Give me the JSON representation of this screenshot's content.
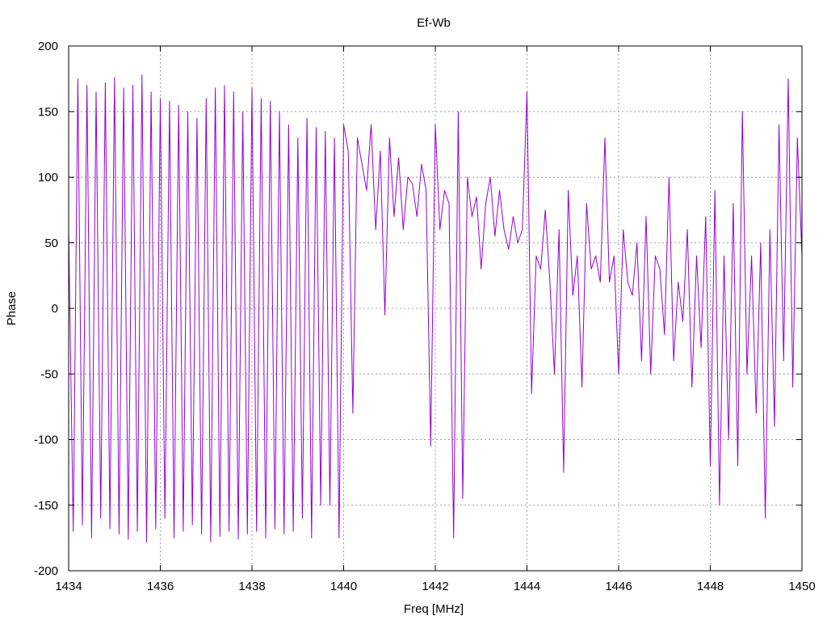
{
  "chart_data": {
    "type": "line",
    "title": "Ef-Wb",
    "xlabel": "Freq [MHz]",
    "ylabel": "Phase",
    "xlim": [
      1434,
      1450
    ],
    "ylim": [
      -200,
      200
    ],
    "xticks": [
      1434,
      1436,
      1438,
      1440,
      1442,
      1444,
      1446,
      1448,
      1450
    ],
    "yticks": [
      -200,
      -150,
      -100,
      -50,
      0,
      50,
      100,
      150,
      200
    ],
    "grid": true,
    "legend": "none",
    "series_color": "#9400d3",
    "series": [
      {
        "x": [
          1434.0,
          1434.1,
          1434.2,
          1434.3,
          1434.4,
          1434.5,
          1434.6,
          1434.7,
          1434.8,
          1434.9,
          1435.0,
          1435.1,
          1435.2,
          1435.3,
          1435.4,
          1435.5,
          1435.6,
          1435.7,
          1435.8,
          1435.9,
          1436.0,
          1436.1,
          1436.2,
          1436.3,
          1436.4,
          1436.5,
          1436.6,
          1436.7,
          1436.8,
          1436.9,
          1437.0,
          1437.1,
          1437.2,
          1437.3,
          1437.4,
          1437.5,
          1437.6,
          1437.7,
          1437.8,
          1437.9,
          1438.0,
          1438.1,
          1438.2,
          1438.3,
          1438.4,
          1438.5,
          1438.6,
          1438.7,
          1438.8,
          1438.9,
          1439.0,
          1439.1,
          1439.2,
          1439.3,
          1439.4,
          1439.5,
          1439.6,
          1439.7,
          1439.8,
          1439.9,
          1440.0,
          1440.1,
          1440.2,
          1440.3,
          1440.4,
          1440.5,
          1440.6,
          1440.7,
          1440.8,
          1440.9,
          1441.0,
          1441.1,
          1441.2,
          1441.3,
          1441.4,
          1441.5,
          1441.6,
          1441.7,
          1441.8,
          1441.9,
          1442.0,
          1442.1,
          1442.2,
          1442.3,
          1442.4,
          1442.5,
          1442.6,
          1442.7,
          1442.8,
          1442.9,
          1443.0,
          1443.1,
          1443.2,
          1443.3,
          1443.4,
          1443.5,
          1443.6,
          1443.7,
          1443.8,
          1443.9,
          1444.0,
          1444.1,
          1444.2,
          1444.3,
          1444.4,
          1444.5,
          1444.6,
          1444.7,
          1444.8,
          1444.9,
          1445.0,
          1445.1,
          1445.2,
          1445.3,
          1445.4,
          1445.5,
          1445.6,
          1445.7,
          1445.8,
          1445.9,
          1446.0,
          1446.1,
          1446.2,
          1446.3,
          1446.4,
          1446.5,
          1446.6,
          1446.7,
          1446.8,
          1446.9,
          1447.0,
          1447.1,
          1447.2,
          1447.3,
          1447.4,
          1447.5,
          1447.6,
          1447.7,
          1447.8,
          1447.9,
          1448.0,
          1448.1,
          1448.2,
          1448.3,
          1448.4,
          1448.5,
          1448.6,
          1448.7,
          1448.8,
          1448.9,
          1449.0,
          1449.1,
          1449.2,
          1449.3,
          1449.4,
          1449.5,
          1449.6,
          1449.7,
          1449.8,
          1449.9,
          1450.0
        ],
        "y": [
          60,
          -170,
          175,
          -165,
          170,
          -175,
          165,
          -160,
          172,
          -168,
          176,
          -172,
          168,
          -176,
          170,
          -170,
          178,
          -178,
          165,
          -168,
          160,
          -160,
          158,
          -175,
          155,
          -170,
          150,
          -165,
          145,
          -172,
          160,
          -178,
          168,
          -174,
          170,
          -170,
          165,
          -176,
          150,
          -172,
          168,
          -170,
          160,
          -175,
          158,
          -168,
          150,
          -172,
          140,
          -170,
          130,
          -160,
          145,
          -175,
          138,
          -150,
          135,
          -150,
          130,
          -175,
          140,
          120,
          -80,
          130,
          110,
          90,
          140,
          60,
          120,
          -5,
          130,
          70,
          115,
          60,
          100,
          95,
          70,
          110,
          90,
          -105,
          140,
          60,
          90,
          80,
          -175,
          150,
          -145,
          100,
          70,
          85,
          30,
          80,
          100,
          55,
          90,
          60,
          45,
          70,
          50,
          60,
          165,
          -65,
          40,
          30,
          75,
          20,
          -50,
          60,
          -125,
          90,
          10,
          40,
          -60,
          80,
          30,
          40,
          20,
          130,
          20,
          40,
          -50,
          60,
          20,
          10,
          50,
          -40,
          70,
          -50,
          40,
          30,
          -20,
          100,
          -40,
          20,
          -10,
          60,
          -60,
          40,
          -30,
          70,
          -120,
          90,
          -150,
          40,
          -100,
          80,
          -120,
          150,
          -50,
          40,
          -80,
          50,
          -160,
          60,
          -90,
          140,
          -40,
          175,
          -60,
          130,
          40
        ]
      }
    ]
  }
}
